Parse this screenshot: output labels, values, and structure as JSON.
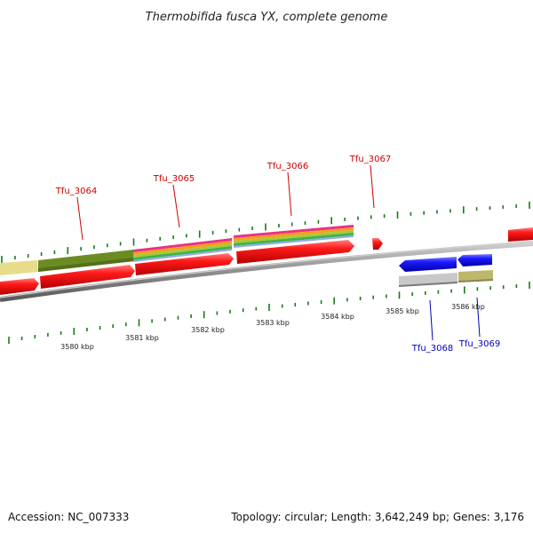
{
  "title": "Thermobifida fusca YX, complete genome",
  "footer": {
    "accession": "Accession: NC_007333",
    "summary": "Topology: circular; Length: 3,642,249 bp; Genes: 3,176"
  },
  "scale": {
    "ticks": [
      "3580 kbp",
      "3581 kbp",
      "3582 kbp",
      "3583 kbp",
      "3584 kbp",
      "3585 kbp",
      "3586 kbp"
    ]
  },
  "genes": {
    "forward": [
      "Tfu_3064",
      "Tfu_3065",
      "Tfu_3066",
      "Tfu_3067"
    ],
    "reverse": [
      "Tfu_3068",
      "Tfu_3069"
    ]
  },
  "colors": {
    "forward_label": "#cc0000",
    "reverse_label": "#0000bb",
    "forward_gene": "#ff1a1a",
    "reverse_gene": "#1a1aff",
    "backbone": "#8c8c8c",
    "tick": "#1a7a1a",
    "feature_khaki": "#e6dc8c",
    "feature_olive": "#6b8c23",
    "feature_gray": "#c8c8c8",
    "feature_tan": "#bdb76b"
  }
}
